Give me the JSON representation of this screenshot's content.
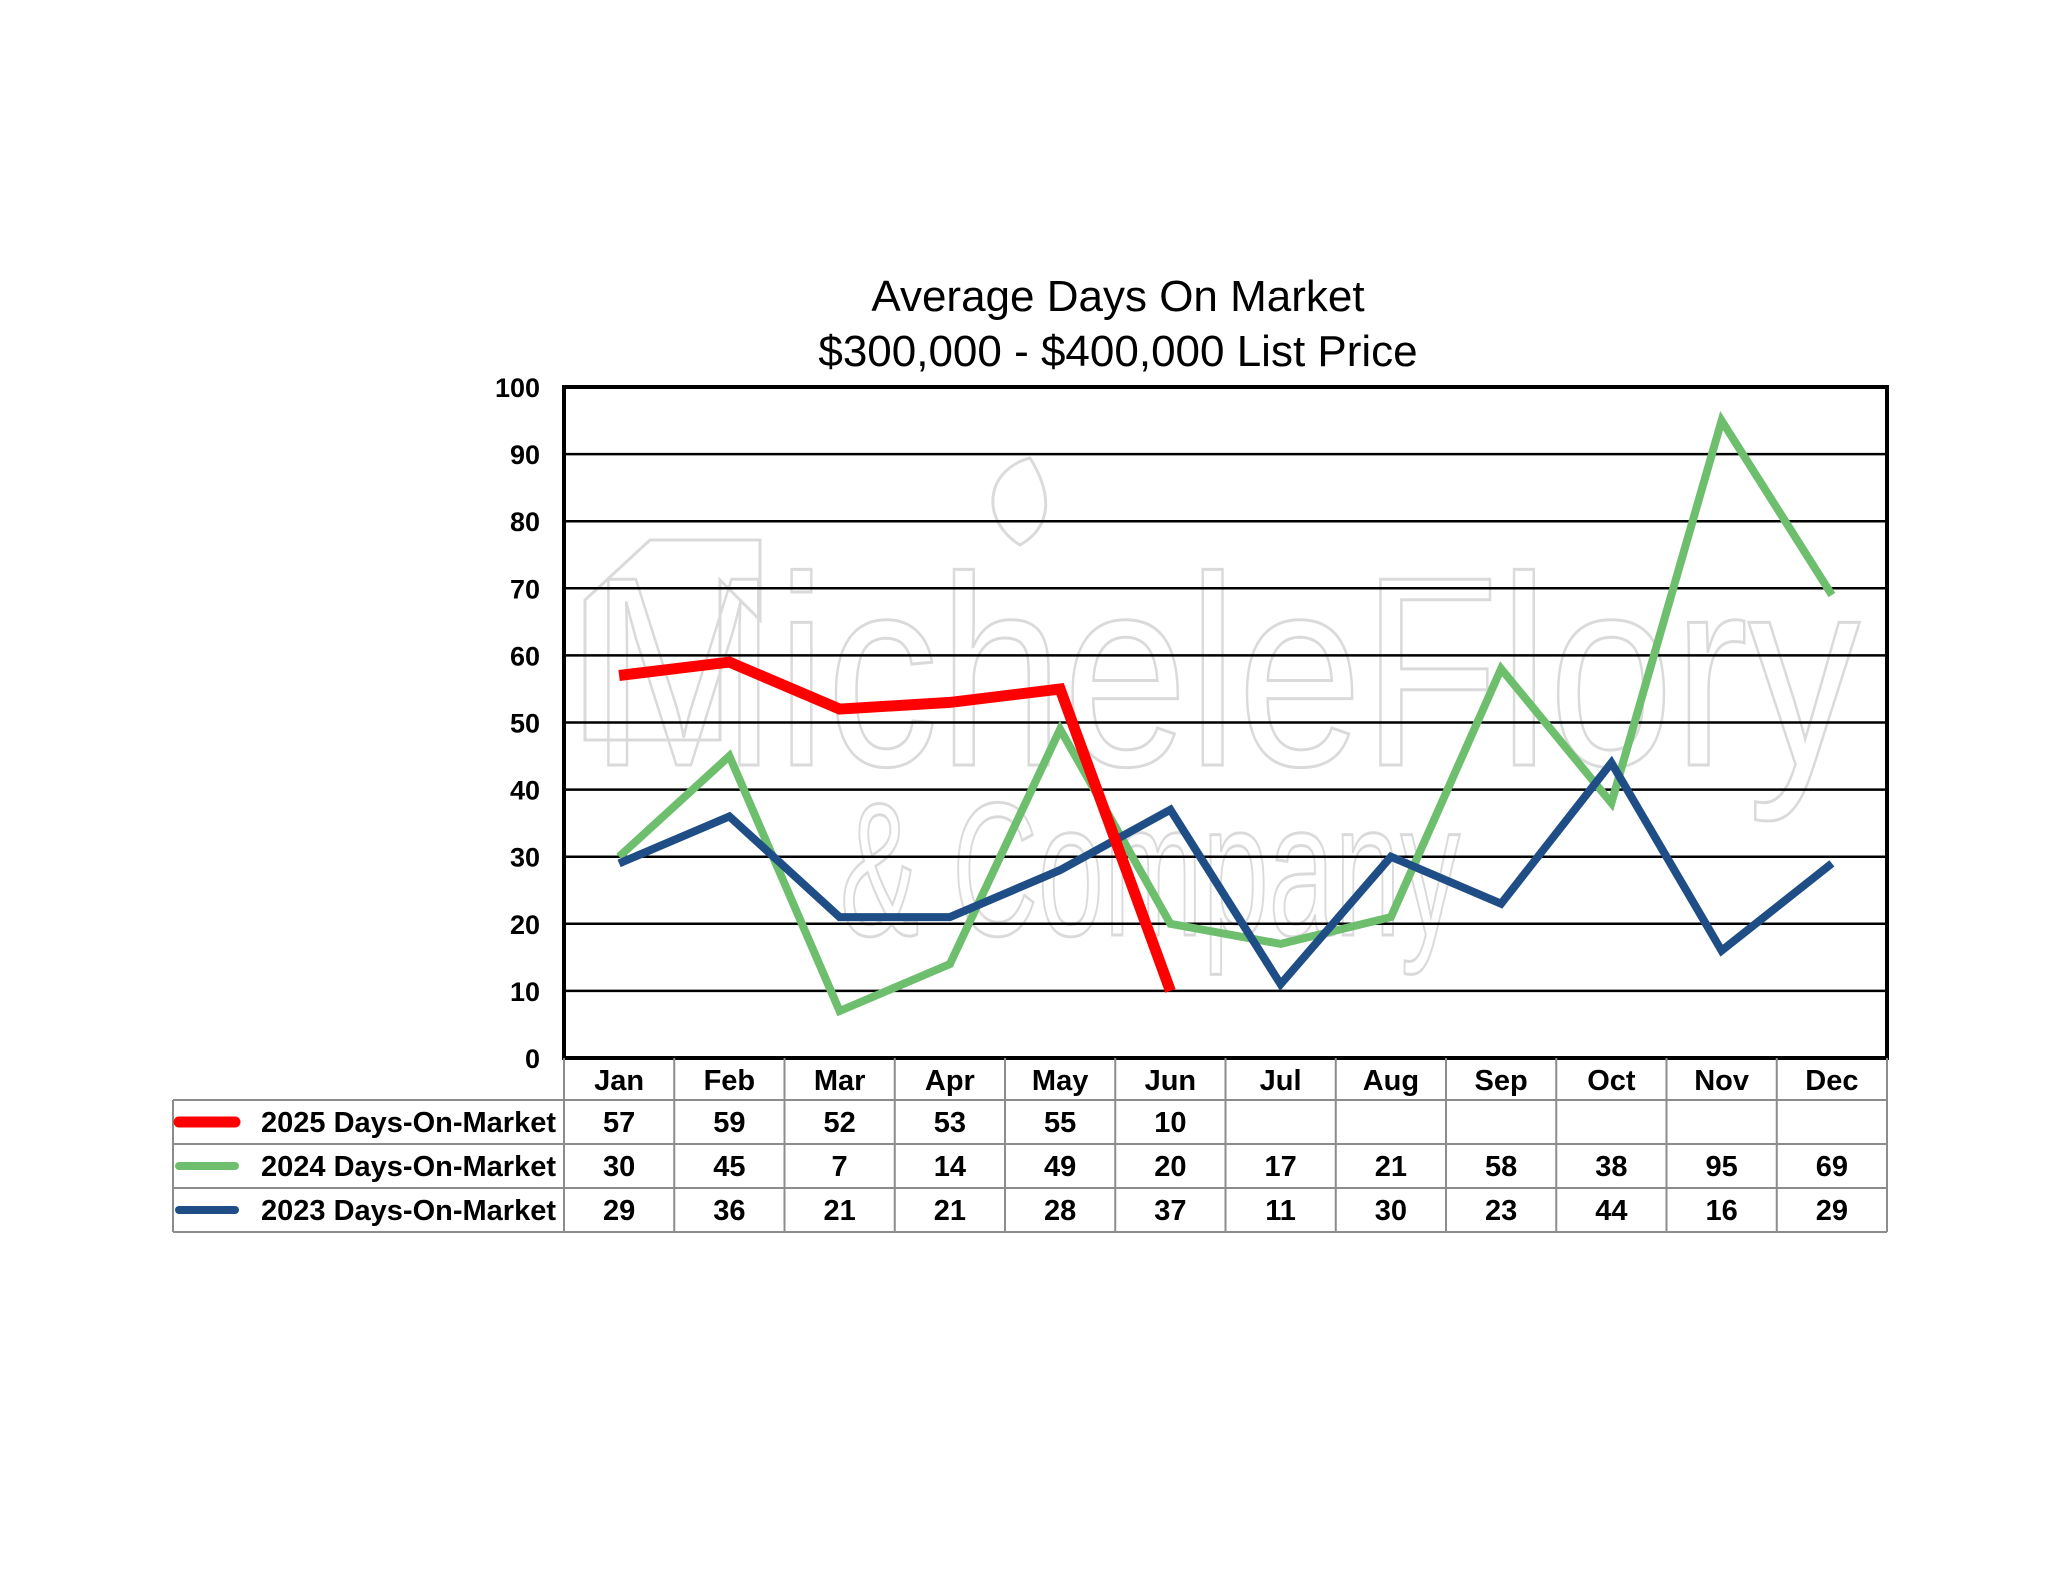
{
  "chart_data": {
    "type": "line",
    "title": "Average Days On Market",
    "subtitle": "$300,000 - $400,000 List Price",
    "xlabel": "",
    "ylabel": "",
    "ylim": [
      0,
      100
    ],
    "yticks": [
      "0",
      "10",
      "20",
      "30",
      "40",
      "50",
      "60",
      "70",
      "80",
      "90",
      "100"
    ],
    "grid": true,
    "legend": "data-table-bottom",
    "categories": [
      "Jan",
      "Feb",
      "Mar",
      "Apr",
      "May",
      "Jun",
      "Jul",
      "Aug",
      "Sep",
      "Oct",
      "Nov",
      "Dec"
    ],
    "series": [
      {
        "name": "2025 Days-On-Market",
        "color": "#ff0000",
        "values": [
          57,
          59,
          52,
          53,
          55,
          10,
          null,
          null,
          null,
          null,
          null,
          null
        ]
      },
      {
        "name": "2024 Days-On-Market",
        "color": "#6dbf6d",
        "values": [
          30,
          45,
          7,
          14,
          49,
          20,
          17,
          21,
          58,
          38,
          95,
          69
        ]
      },
      {
        "name": "2023 Days-On-Market",
        "color": "#1f4e87",
        "values": [
          29,
          36,
          21,
          21,
          28,
          37,
          11,
          30,
          23,
          44,
          16,
          29
        ]
      }
    ]
  },
  "watermark": {
    "line1": "MicheleFlory",
    "line2": "& Company",
    "logo_icon": "house-logo-icon",
    "leaf_icon": "leaf-icon"
  }
}
